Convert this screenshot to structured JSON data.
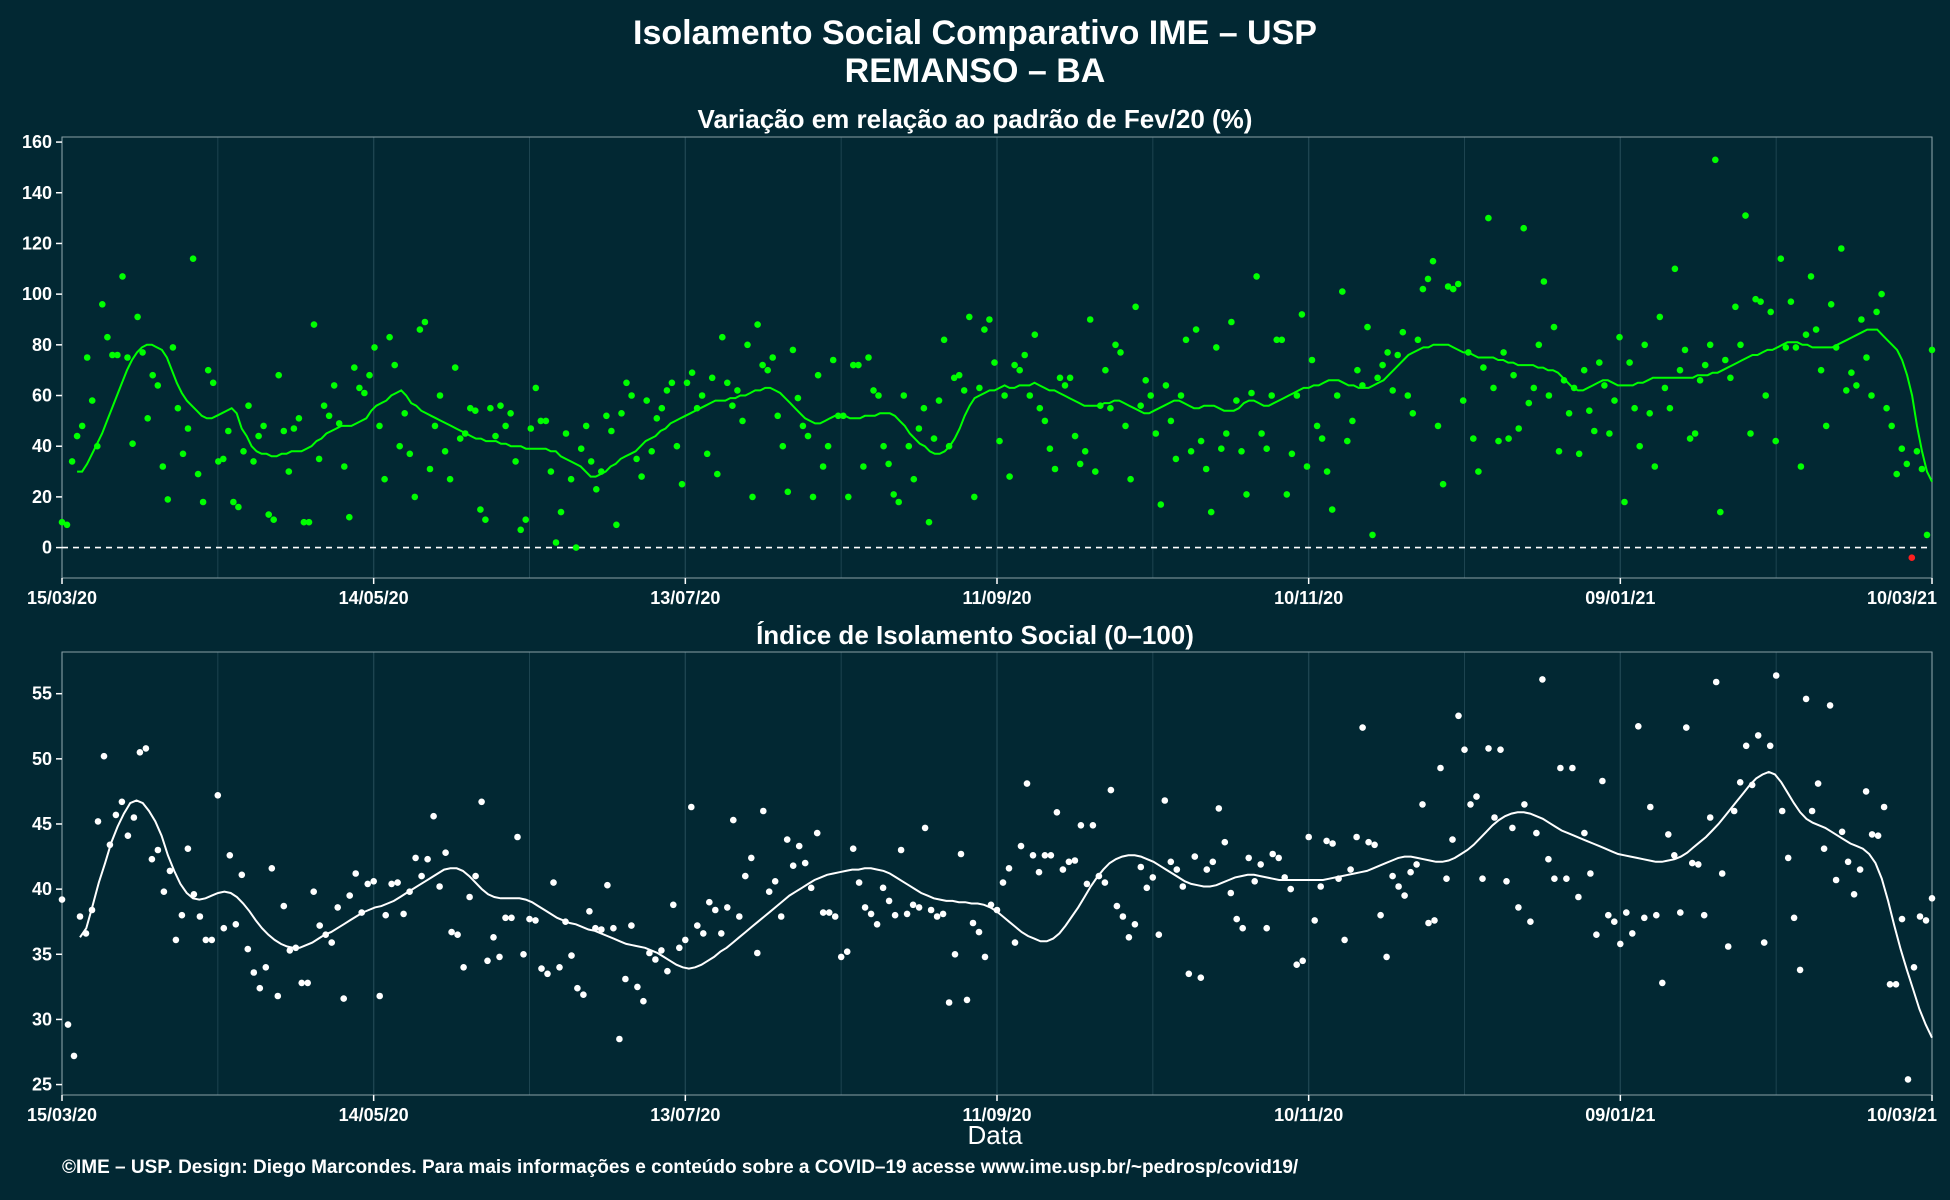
{
  "titles": {
    "main": "Isolamento Social Comparativo IME – USP",
    "location": "REMANSO – BA",
    "footer": "©IME – USP. Design: Diego Marcondes. Para mais informações e conteúdo sobre a COVID–19 acesse www.ime.usp.br/~pedrosp/covid19/"
  },
  "colors": {
    "background": "#022833",
    "top_series": "#00ff00",
    "top_negative": "#ff2020",
    "bottom_series": "#ffffff",
    "grid": "#1d4450"
  },
  "chart_data": [
    {
      "type": "scatter",
      "title": "Variação em relação ao padrão de Fev/20 (%)",
      "xlabel": "",
      "ylabel": "",
      "x_ticks": [
        "15/03/20",
        "14/05/20",
        "13/07/20",
        "11/09/20",
        "10/11/20",
        "09/01/21",
        "10/03/21"
      ],
      "ylim": [
        -12,
        162
      ],
      "y_ticks": [
        0,
        20,
        40,
        60,
        80,
        100,
        120,
        140,
        160
      ],
      "reference_line": 0,
      "start_date": "15/03/20",
      "end_date": "10/03/21",
      "values": [
        10,
        9,
        34,
        44,
        48,
        75,
        58,
        40,
        96,
        83,
        76,
        76,
        107,
        75,
        41,
        91,
        77,
        51,
        68,
        64,
        32,
        19,
        79,
        55,
        37,
        47,
        114,
        29,
        18,
        70,
        65,
        34,
        35,
        46,
        18,
        16,
        38,
        56,
        34,
        44,
        48,
        13,
        11,
        68,
        46,
        30,
        47,
        51,
        10,
        10,
        88,
        35,
        56,
        52,
        64,
        49,
        32,
        12,
        71,
        63,
        61,
        68,
        79,
        48,
        27,
        83,
        72,
        40,
        53,
        37,
        20,
        86,
        89,
        31,
        48,
        60,
        38,
        27,
        71,
        43,
        45,
        55,
        54,
        15,
        11,
        55,
        44,
        56,
        48,
        53,
        34,
        7,
        11,
        47,
        63,
        50,
        50,
        30,
        2,
        14,
        45,
        27,
        0,
        39,
        48,
        34,
        23,
        30,
        52,
        46,
        9,
        53,
        65,
        60,
        35,
        28,
        58,
        38,
        51,
        55,
        62,
        65,
        40,
        25,
        65,
        69,
        55,
        60,
        37,
        67,
        29,
        83,
        65,
        56,
        62,
        50,
        80,
        20,
        88,
        72,
        70,
        75,
        52,
        40,
        22,
        78,
        59,
        48,
        44,
        20,
        68,
        32,
        40,
        74,
        52,
        52,
        20,
        72,
        72,
        32,
        75,
        62,
        60,
        40,
        33,
        21,
        18,
        60,
        40,
        27,
        47,
        55,
        10,
        43,
        58,
        82,
        40,
        67,
        68,
        62,
        91,
        20,
        63,
        86,
        90,
        73,
        42,
        60,
        28,
        72,
        70,
        76,
        60,
        84,
        55,
        50,
        39,
        31,
        67,
        64,
        67,
        44,
        33,
        38,
        90,
        30,
        56,
        70,
        55,
        80,
        77,
        48,
        27,
        95,
        56,
        66,
        60,
        45,
        17,
        64,
        50,
        35,
        60,
        82,
        38,
        86,
        42,
        31,
        14,
        79,
        39,
        45,
        89,
        58,
        38,
        21,
        61,
        107,
        45,
        39,
        60,
        82,
        82,
        21,
        37,
        60,
        92,
        32,
        74,
        48,
        43,
        30,
        15,
        60,
        101,
        42,
        50,
        70,
        64,
        87,
        5,
        67,
        72,
        77,
        62,
        76,
        85,
        60,
        53,
        82,
        102,
        106,
        113,
        48,
        25,
        103,
        102,
        104,
        58,
        77,
        43,
        30,
        71,
        130,
        63,
        42,
        77,
        43,
        68,
        47,
        126,
        57,
        63,
        80,
        105,
        60,
        87,
        38,
        66,
        53,
        63,
        37,
        70,
        54,
        46,
        73,
        64,
        45,
        58,
        83,
        18,
        73,
        55,
        40,
        80,
        53,
        32,
        91,
        63,
        55,
        110,
        70,
        78,
        43,
        45,
        66,
        72,
        80,
        153,
        14,
        74,
        67,
        95,
        80,
        131,
        45,
        98,
        97,
        60,
        93,
        42,
        114,
        79,
        97,
        79,
        32,
        84,
        107,
        86,
        70,
        48,
        96,
        79,
        118,
        62,
        69,
        64,
        90,
        75,
        60,
        93,
        100,
        55,
        48,
        29,
        39,
        33,
        -4,
        38,
        31,
        5,
        78
      ],
      "rolling_avg": [
        30,
        30,
        33,
        37,
        41,
        45,
        50,
        55,
        60,
        65,
        70,
        74,
        77,
        79,
        80,
        80,
        79,
        78,
        75,
        70,
        65,
        61,
        58,
        56,
        54,
        52,
        51,
        51,
        52,
        53,
        54,
        55,
        53,
        47,
        44,
        40,
        38,
        37,
        37,
        36,
        36,
        37,
        37,
        38,
        38,
        38,
        39,
        40,
        42,
        43,
        45,
        46,
        47,
        48,
        48,
        48,
        49,
        50,
        51,
        54,
        56,
        57,
        58,
        60,
        61,
        62,
        60,
        57,
        56,
        54,
        53,
        52,
        51,
        50,
        49,
        48,
        47,
        46,
        45,
        44,
        43,
        43,
        42,
        42,
        42,
        41,
        41,
        40,
        40,
        40,
        39,
        39,
        39,
        39,
        39,
        38,
        38,
        36,
        35,
        34,
        33,
        32,
        30,
        28,
        28,
        29,
        30,
        32,
        33,
        35,
        36,
        37,
        38,
        40,
        42,
        43,
        44,
        46,
        47,
        49,
        50,
        51,
        52,
        53,
        54,
        55,
        56,
        57,
        58,
        58,
        58,
        59,
        59,
        60,
        60,
        61,
        62,
        62,
        63,
        63,
        62,
        61,
        59,
        57,
        55,
        53,
        51,
        50,
        49,
        49,
        50,
        51,
        52,
        52,
        52,
        51,
        51,
        51,
        52,
        52,
        52,
        53,
        53,
        53,
        52,
        50,
        48,
        45,
        43,
        41,
        40,
        38,
        37,
        37,
        38,
        40,
        43,
        47,
        52,
        56,
        59,
        60,
        61,
        62,
        62,
        63,
        64,
        63,
        63,
        64,
        64,
        64,
        65,
        64,
        63,
        62,
        62,
        61,
        60,
        59,
        58,
        57,
        56,
        56,
        56,
        56,
        57,
        57,
        58,
        58,
        57,
        56,
        55,
        54,
        53,
        53,
        54,
        55,
        56,
        57,
        58,
        58,
        57,
        56,
        55,
        55,
        56,
        56,
        56,
        55,
        54,
        54,
        54,
        55,
        57,
        58,
        58,
        57,
        56,
        56,
        57,
        58,
        59,
        60,
        61,
        62,
        63,
        63,
        64,
        64,
        65,
        66,
        66,
        66,
        65,
        64,
        64,
        63,
        63,
        63,
        64,
        65,
        66,
        68,
        70,
        72,
        74,
        76,
        77,
        78,
        79,
        79,
        80,
        80,
        80,
        80,
        79,
        78,
        77,
        77,
        76,
        75,
        75,
        75,
        75,
        74,
        74,
        73,
        73,
        72,
        72,
        72,
        72,
        71,
        71,
        70,
        70,
        69,
        67,
        65,
        63,
        62,
        62,
        63,
        64,
        65,
        66,
        66,
        65,
        64,
        64,
        64,
        64,
        65,
        65,
        66,
        67,
        67,
        67,
        67,
        67,
        67,
        67,
        67,
        67,
        68,
        68,
        68,
        69,
        69,
        70,
        71,
        72,
        73,
        74,
        75,
        76,
        76,
        77,
        78,
        78,
        79,
        80,
        81,
        81,
        81,
        80,
        80,
        79,
        79,
        79,
        79,
        79,
        80,
        81,
        82,
        83,
        84,
        85,
        86,
        86,
        86,
        84,
        82,
        80,
        78,
        74,
        68,
        60,
        48,
        38,
        30,
        26
      ]
    },
    {
      "type": "scatter",
      "title": "Índice de Isolamento Social (0–100)",
      "xlabel": "Data",
      "ylabel": "",
      "x_ticks": [
        "15/03/20",
        "14/05/20",
        "13/07/20",
        "11/09/20",
        "10/11/20",
        "09/01/21",
        "10/03/21"
      ],
      "ylim": [
        24.2,
        58.2
      ],
      "y_ticks": [
        25,
        30,
        35,
        40,
        45,
        50,
        55
      ],
      "start_date": "15/03/20",
      "end_date": "10/03/21",
      "values": [
        39.2,
        29.6,
        27.2,
        37.9,
        36.6,
        38.4,
        45.2,
        50.2,
        43.4,
        45.7,
        46.7,
        44.1,
        45.5,
        50.5,
        50.8,
        42.3,
        43.0,
        39.8,
        41.4,
        36.1,
        38.0,
        43.1,
        39.6,
        37.9,
        36.1,
        36.1,
        47.2,
        37.0,
        42.6,
        37.3,
        41.1,
        35.4,
        33.6,
        32.4,
        34.0,
        41.6,
        31.8,
        38.7,
        35.3,
        35.5,
        32.8,
        32.8,
        39.8,
        37.2,
        36.5,
        35.9,
        38.6,
        31.6,
        39.5,
        41.2,
        38.2,
        40.4,
        40.6,
        31.8,
        38.0,
        40.4,
        40.5,
        38.1,
        39.8,
        42.4,
        41.0,
        42.3,
        45.6,
        40.2,
        42.8,
        36.7,
        36.5,
        34.0,
        39.4,
        41.0,
        46.7,
        34.5,
        36.3,
        34.8,
        37.8,
        37.8,
        44.0,
        35.0,
        37.7,
        37.6,
        33.9,
        33.5,
        40.5,
        34.0,
        37.5,
        34.9,
        32.4,
        31.9,
        38.3,
        37.0,
        36.9,
        40.3,
        37.0,
        28.5,
        33.1,
        37.2,
        32.5,
        31.4,
        35.1,
        34.6,
        35.3,
        33.7,
        38.8,
        35.5,
        36.1,
        46.3,
        37.2,
        36.6,
        39.0,
        38.4,
        36.6,
        38.6,
        45.3,
        37.9,
        41.0,
        42.4,
        35.1,
        46.0,
        39.8,
        40.6,
        37.9,
        43.8,
        41.8,
        43.3,
        42.0,
        40.1,
        44.3,
        38.2,
        38.2,
        37.9,
        34.8,
        35.2,
        43.1,
        40.5,
        38.6,
        38.1,
        37.3,
        40.1,
        39.1,
        38.0,
        43.0,
        38.1,
        38.8,
        38.6,
        44.7,
        38.4,
        37.9,
        38.1,
        31.3,
        35.0,
        42.7,
        31.5,
        37.4,
        36.7,
        34.8,
        38.8,
        38.4,
        40.5,
        41.6,
        35.9,
        43.3,
        48.1,
        42.6,
        41.3,
        42.6,
        42.6,
        45.9,
        41.5,
        42.1,
        42.2,
        44.9,
        40.4,
        44.9,
        41.0,
        40.5,
        47.6,
        38.7,
        37.9,
        36.3,
        37.3,
        41.7,
        40.1,
        40.9,
        36.5,
        46.8,
        42.1,
        41.5,
        40.2,
        33.5,
        42.5,
        33.2,
        41.5,
        42.1,
        46.2,
        43.6,
        39.7,
        37.7,
        37.0,
        42.4,
        40.6,
        41.9,
        37.0,
        42.7,
        42.4,
        40.9,
        40.0,
        34.2,
        34.5,
        44.0,
        37.6,
        40.2,
        43.7,
        43.5,
        40.8,
        36.1,
        41.5,
        44.0,
        52.4,
        43.6,
        43.4,
        38.0,
        34.8,
        41.0,
        40.2,
        39.5,
        41.3,
        41.9,
        46.5,
        37.4,
        37.6,
        49.3,
        40.8,
        43.8,
        53.3,
        50.7,
        46.5,
        47.1,
        40.8,
        50.8,
        45.5,
        50.7,
        40.6,
        44.7,
        38.6,
        46.5,
        37.5,
        44.3,
        56.1,
        42.3,
        40.8,
        49.3,
        40.8,
        49.3,
        39.4,
        44.3,
        41.2,
        36.5,
        48.3,
        38.0,
        37.5,
        35.8,
        38.2,
        36.6,
        52.5,
        37.8,
        46.3,
        38.0,
        32.8,
        44.2,
        42.6,
        38.2,
        52.4,
        42.0,
        41.9,
        38.0,
        45.5,
        55.9,
        41.2,
        35.6,
        46.0,
        48.2,
        51.0,
        48.0,
        51.8,
        35.9,
        51.0,
        56.4,
        46.0,
        42.4,
        37.8,
        33.8,
        54.6,
        46.0,
        48.1,
        43.1,
        54.1,
        40.7,
        44.4,
        42.1,
        39.6,
        41.5,
        47.5,
        44.2,
        44.1,
        46.3,
        32.7,
        32.7,
        37.7,
        25.4,
        34.0,
        37.9,
        37.6,
        39.3
      ],
      "rolling_avg": [
        36.3,
        37.0,
        38.7,
        40.5,
        42.0,
        43.6,
        44.8,
        45.8,
        46.6,
        46.8,
        46.6,
        46.0,
        45.2,
        44.1,
        42.6,
        41.4,
        40.4,
        39.7,
        39.3,
        39.2,
        39.3,
        39.5,
        39.7,
        39.8,
        39.7,
        39.4,
        38.9,
        38.3,
        37.6,
        37.0,
        36.5,
        36.1,
        35.8,
        35.6,
        35.5,
        35.5,
        35.7,
        35.9,
        36.2,
        36.5,
        36.7,
        37.0,
        37.3,
        37.6,
        37.9,
        38.2,
        38.4,
        38.6,
        38.7,
        38.9,
        39.1,
        39.4,
        39.7,
        40.0,
        40.3,
        40.6,
        40.9,
        41.2,
        41.5,
        41.6,
        41.6,
        41.4,
        41.0,
        40.5,
        40.0,
        39.6,
        39.4,
        39.3,
        39.3,
        39.3,
        39.3,
        39.2,
        39.0,
        38.7,
        38.4,
        38.1,
        37.8,
        37.6,
        37.4,
        37.3,
        37.1,
        36.9,
        36.8,
        36.6,
        36.4,
        36.2,
        36.0,
        35.8,
        35.7,
        35.6,
        35.5,
        35.3,
        35.1,
        34.8,
        34.5,
        34.2,
        34.0,
        33.9,
        34.0,
        34.2,
        34.5,
        34.8,
        35.2,
        35.5,
        35.9,
        36.3,
        36.7,
        37.1,
        37.5,
        37.9,
        38.3,
        38.7,
        39.1,
        39.5,
        39.8,
        40.1,
        40.4,
        40.7,
        40.9,
        41.1,
        41.2,
        41.3,
        41.4,
        41.5,
        41.5,
        41.6,
        41.6,
        41.5,
        41.4,
        41.2,
        40.9,
        40.6,
        40.3,
        40.0,
        39.7,
        39.5,
        39.3,
        39.2,
        39.1,
        39.1,
        39.0,
        39.0,
        38.9,
        38.9,
        38.8,
        38.6,
        38.3,
        37.9,
        37.5,
        37.1,
        36.7,
        36.4,
        36.2,
        36.0,
        36.0,
        36.2,
        36.6,
        37.2,
        37.9,
        38.6,
        39.4,
        40.2,
        40.9,
        41.5,
        42.0,
        42.3,
        42.5,
        42.6,
        42.6,
        42.5,
        42.3,
        42.1,
        41.8,
        41.5,
        41.2,
        40.9,
        40.6,
        40.4,
        40.3,
        40.2,
        40.2,
        40.3,
        40.5,
        40.7,
        40.9,
        41.0,
        41.1,
        41.1,
        41.0,
        40.9,
        40.8,
        40.7,
        40.7,
        40.7,
        40.7,
        40.7,
        40.7,
        40.7,
        40.7,
        40.8,
        40.9,
        41.0,
        41.1,
        41.2,
        41.3,
        41.4,
        41.6,
        41.8,
        42.0,
        42.2,
        42.4,
        42.5,
        42.5,
        42.4,
        42.3,
        42.2,
        42.1,
        42.1,
        42.2,
        42.4,
        42.7,
        43.0,
        43.4,
        43.9,
        44.4,
        44.9,
        45.3,
        45.6,
        45.8,
        45.9,
        45.9,
        45.8,
        45.6,
        45.4,
        45.1,
        44.8,
        44.5,
        44.3,
        44.1,
        43.9,
        43.7,
        43.5,
        43.3,
        43.1,
        42.9,
        42.7,
        42.6,
        42.5,
        42.4,
        42.3,
        42.2,
        42.1,
        42.1,
        42.2,
        42.3,
        42.5,
        42.8,
        43.2,
        43.6,
        44.0,
        44.5,
        45.0,
        45.6,
        46.2,
        46.8,
        47.4,
        48.0,
        48.5,
        48.8,
        49.0,
        48.8,
        48.2,
        47.4,
        46.6,
        45.9,
        45.4,
        45.1,
        44.9,
        44.7,
        44.4,
        44.1,
        43.8,
        43.5,
        43.3,
        43.1,
        42.7,
        42.0,
        40.8,
        39.1,
        37.2,
        35.4,
        33.8,
        32.3,
        30.8,
        29.6,
        28.6
      ]
    }
  ]
}
